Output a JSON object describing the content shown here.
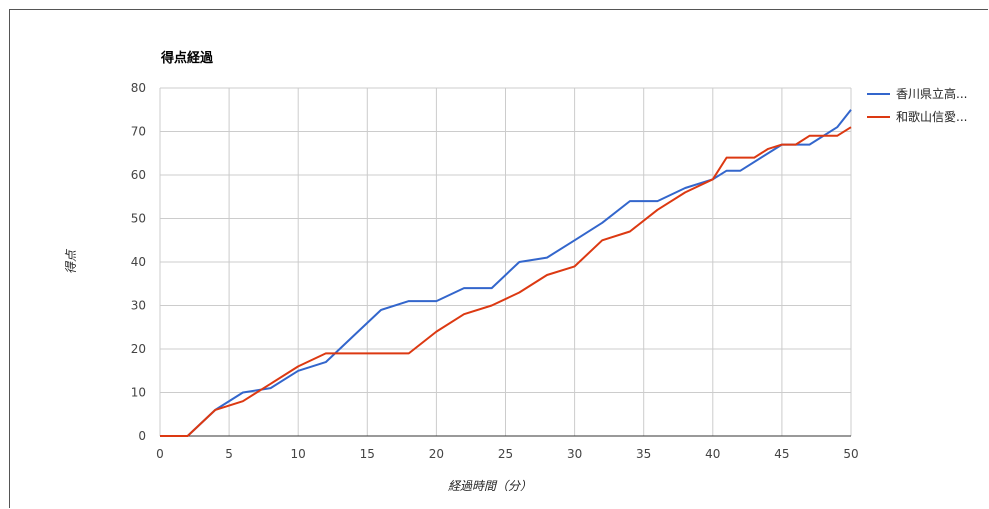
{
  "chart_data": {
    "type": "line",
    "title": "得点経過",
    "xlabel": "経過時間（分）",
    "ylabel": "得点",
    "xlim": [
      0,
      50
    ],
    "ylim": [
      0,
      80
    ],
    "x_ticks": [
      0,
      5,
      10,
      15,
      20,
      25,
      30,
      35,
      40,
      45,
      50
    ],
    "y_ticks": [
      0,
      10,
      20,
      30,
      40,
      50,
      60,
      70,
      80
    ],
    "grid": true,
    "legend_position": "right",
    "series": [
      {
        "name": "香川県立高...",
        "color": "#3366cc",
        "points": [
          [
            0,
            0
          ],
          [
            2,
            0
          ],
          [
            4,
            6
          ],
          [
            6,
            10
          ],
          [
            8,
            11
          ],
          [
            10,
            15
          ],
          [
            12,
            17
          ],
          [
            14,
            23
          ],
          [
            16,
            29
          ],
          [
            18,
            31
          ],
          [
            20,
            31
          ],
          [
            22,
            34
          ],
          [
            24,
            34
          ],
          [
            26,
            40
          ],
          [
            28,
            41
          ],
          [
            30,
            45
          ],
          [
            32,
            49
          ],
          [
            34,
            54
          ],
          [
            36,
            54
          ],
          [
            38,
            57
          ],
          [
            40,
            59
          ],
          [
            41,
            61
          ],
          [
            42,
            61
          ],
          [
            45,
            67
          ],
          [
            46,
            67
          ],
          [
            47,
            67
          ],
          [
            49,
            71
          ],
          [
            50,
            75
          ]
        ]
      },
      {
        "name": "和歌山信愛...",
        "color": "#dc3912",
        "points": [
          [
            0,
            0
          ],
          [
            2,
            0
          ],
          [
            4,
            6
          ],
          [
            6,
            8
          ],
          [
            8,
            12
          ],
          [
            10,
            16
          ],
          [
            12,
            19
          ],
          [
            14,
            19
          ],
          [
            16,
            19
          ],
          [
            18,
            19
          ],
          [
            20,
            24
          ],
          [
            22,
            28
          ],
          [
            24,
            30
          ],
          [
            26,
            33
          ],
          [
            28,
            37
          ],
          [
            30,
            39
          ],
          [
            32,
            45
          ],
          [
            34,
            47
          ],
          [
            36,
            52
          ],
          [
            38,
            56
          ],
          [
            40,
            59
          ],
          [
            41,
            64
          ],
          [
            42,
            64
          ],
          [
            43,
            64
          ],
          [
            44,
            66
          ],
          [
            45,
            67
          ],
          [
            46,
            67
          ],
          [
            47,
            69
          ],
          [
            48,
            69
          ],
          [
            49,
            69
          ],
          [
            50,
            71
          ]
        ]
      }
    ]
  }
}
